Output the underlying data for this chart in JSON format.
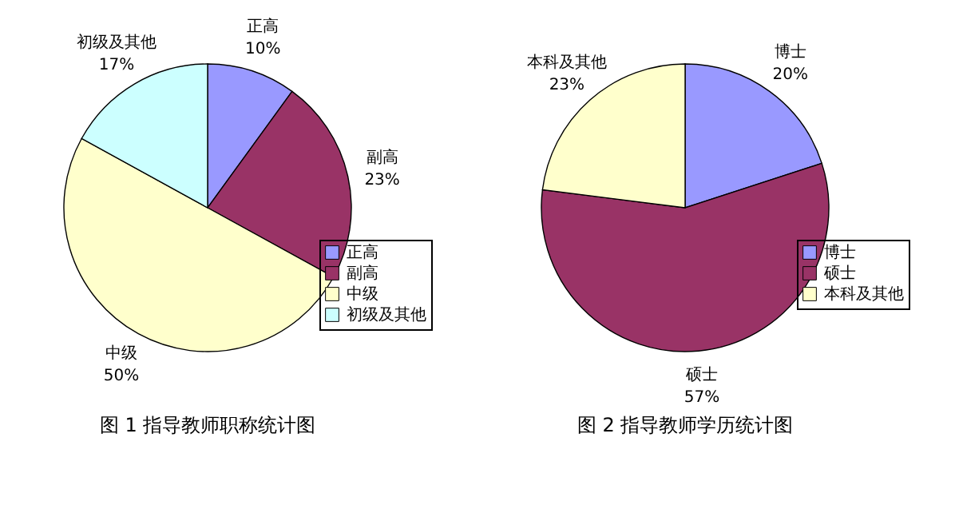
{
  "chart_data": [
    {
      "type": "pie",
      "title": "图 1    指导教师职称统计图",
      "categories": [
        "正高",
        "副高",
        "中级",
        "初级及其他"
      ],
      "values": [
        10,
        23,
        50,
        17
      ],
      "value_labels": [
        "10%",
        "23%",
        "50%",
        "17%"
      ],
      "colors": [
        "#9999ff",
        "#993366",
        "#ffffcc",
        "#ccffff"
      ],
      "legend": "bottom right"
    },
    {
      "type": "pie",
      "title": "图 2    指导教师学历统计图",
      "categories": [
        "博士",
        "硕士",
        "本科及其他"
      ],
      "values": [
        20,
        57,
        23
      ],
      "value_labels": [
        "20%",
        "57%",
        "23%"
      ],
      "colors": [
        "#9999ff",
        "#993366",
        "#ffffcc"
      ],
      "legend": "bottom right"
    }
  ]
}
